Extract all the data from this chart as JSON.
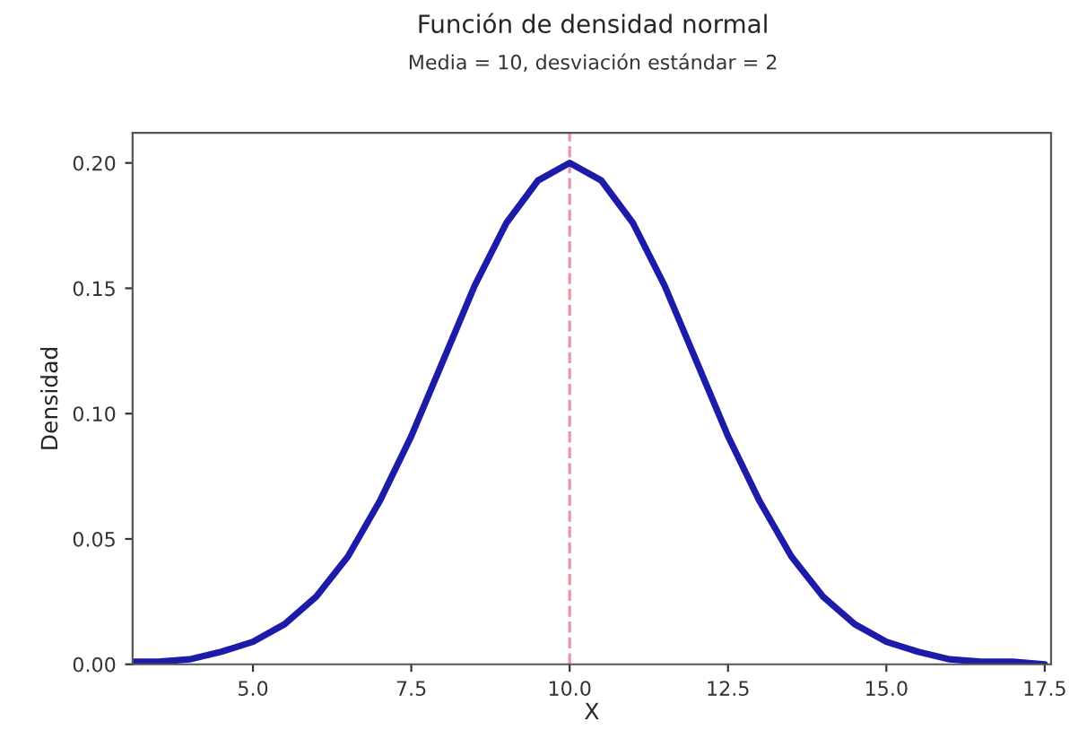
{
  "chart_data": {
    "type": "line",
    "title": "Función de densidad normal",
    "subtitle": "Media = 10, desviación estándar = 2",
    "xlabel": "X",
    "ylabel": "Densidad",
    "x": [
      3.1,
      3.5,
      4.0,
      4.5,
      5.0,
      5.5,
      6.0,
      6.5,
      7.0,
      7.5,
      8.0,
      8.5,
      9.0,
      9.5,
      10.0,
      10.5,
      11.0,
      11.5,
      12.0,
      12.5,
      13.0,
      13.5,
      14.0,
      14.5,
      15.0,
      15.5,
      16.0,
      16.5,
      17.0,
      17.5
    ],
    "series": [
      {
        "color": "#1c1ca8",
        "values": [
          0.001,
          0.001,
          0.002,
          0.005,
          0.009,
          0.016,
          0.027,
          0.043,
          0.065,
          0.091,
          0.121,
          0.151,
          0.176,
          0.193,
          0.2,
          0.193,
          0.176,
          0.151,
          0.121,
          0.091,
          0.065,
          0.043,
          0.027,
          0.016,
          0.009,
          0.005,
          0.002,
          0.001,
          0.001,
          0.0
        ]
      }
    ],
    "xlim": [
      3.1,
      17.6
    ],
    "ylim": [
      0,
      0.212
    ],
    "xticks": [
      {
        "value": 5,
        "label": "5.0"
      },
      {
        "value": 7.5,
        "label": "7.5"
      },
      {
        "value": 10,
        "label": "10.0"
      },
      {
        "value": 12.5,
        "label": "12.5"
      },
      {
        "value": 15,
        "label": "15.0"
      },
      {
        "value": 17.5,
        "label": "17.5"
      }
    ],
    "yticks": [
      {
        "value": 0,
        "label": "0.00"
      },
      {
        "value": 0.05,
        "label": "0.05"
      },
      {
        "value": 0.1,
        "label": "0.10"
      },
      {
        "value": 0.15,
        "label": "0.15"
      },
      {
        "value": 0.2,
        "label": "0.20"
      }
    ],
    "ref_lines": [
      {
        "axis": "x",
        "value": 10,
        "color": "#e89aa6",
        "line_style": "dashed"
      }
    ],
    "grid": false,
    "legend": false,
    "marker": "none",
    "line_style": "solid"
  }
}
